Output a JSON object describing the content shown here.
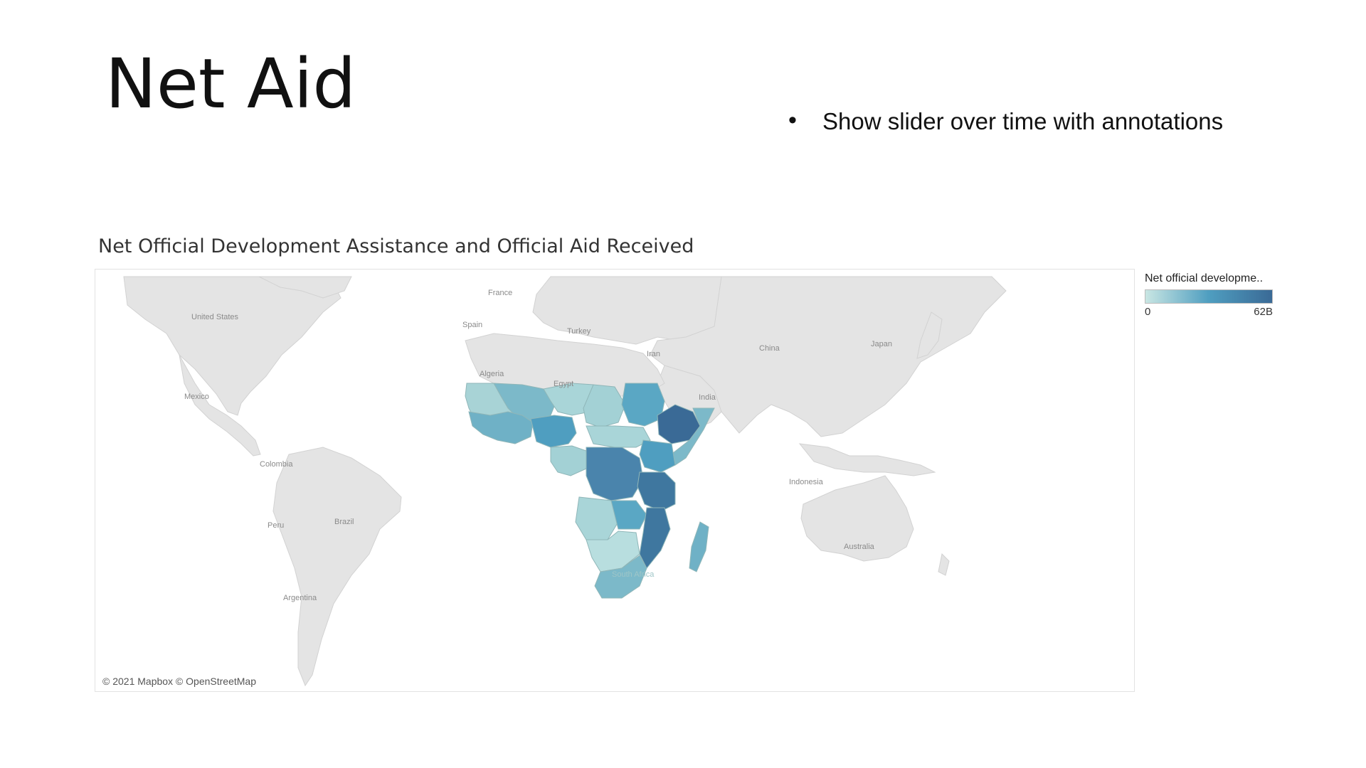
{
  "slide": {
    "title": "Net Aid",
    "bullets": [
      "Show slider over time with annotations"
    ]
  },
  "viz": {
    "title": "Net Official Development Assistance and Official Aid Received",
    "attribution": "© 2021 Mapbox © OpenStreetMap",
    "legend": {
      "title": "Net official developme..",
      "min_label": "0",
      "max_label": "62B",
      "color_low": "#c9e6e3",
      "color_mid": "#4f9ec0",
      "color_high": "#3a6a96"
    },
    "colors": {
      "land": "#e4e4e4",
      "ocean": "#ffffff",
      "border": "#cfcfcf"
    },
    "map_labels": [
      "United States",
      "Mexico",
      "Colombia",
      "Peru",
      "Brazil",
      "Argentina",
      "France",
      "Spain",
      "Algeria",
      "Egypt",
      "Turkey",
      "Iran",
      "India",
      "China",
      "Japan",
      "Indonesia",
      "Australia",
      "South Africa"
    ]
  }
}
